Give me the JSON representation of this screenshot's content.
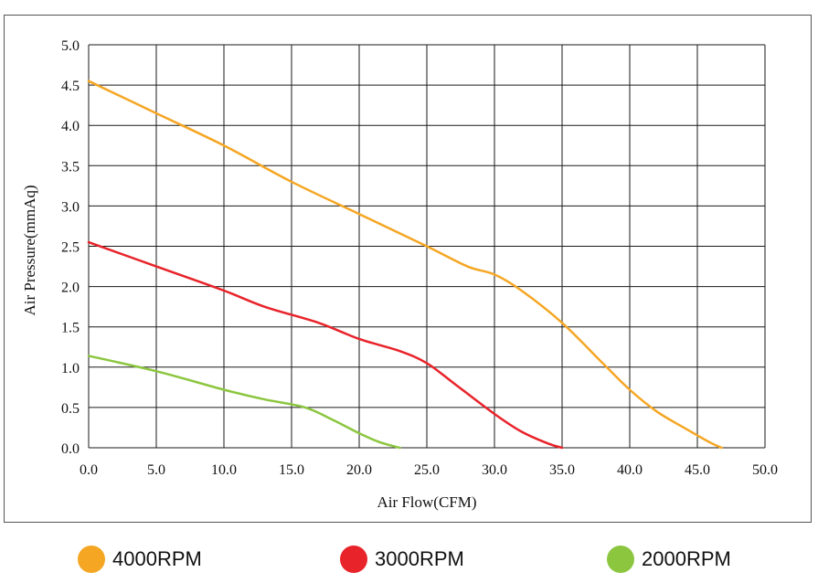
{
  "chart_data": {
    "type": "line",
    "title": "",
    "xlabel": "Air Flow(CFM)",
    "ylabel": "Air Pressure(mmAq)",
    "xlim": [
      0,
      50
    ],
    "ylim": [
      0,
      5
    ],
    "x_ticks": [
      "0.0",
      "5.0",
      "10.0",
      "15.0",
      "20.0",
      "25.0",
      "30.0",
      "35.0",
      "40.0",
      "45.0",
      "50.0"
    ],
    "y_ticks": [
      "0.0",
      "0.5",
      "1.0",
      "1.5",
      "2.0",
      "2.5",
      "3.0",
      "3.5",
      "4.0",
      "4.5",
      "5.0"
    ],
    "grid": true,
    "legend_position": "bottom",
    "series": [
      {
        "name": "4000RPM",
        "color": "#f5a623",
        "points": [
          [
            0,
            4.55
          ],
          [
            5,
            4.15
          ],
          [
            10,
            3.75
          ],
          [
            15,
            3.3
          ],
          [
            20,
            2.9
          ],
          [
            25,
            2.5
          ],
          [
            28,
            2.25
          ],
          [
            30,
            2.15
          ],
          [
            32,
            1.95
          ],
          [
            35,
            1.55
          ],
          [
            38,
            1.05
          ],
          [
            40,
            0.72
          ],
          [
            42,
            0.45
          ],
          [
            44,
            0.25
          ],
          [
            46,
            0.06
          ],
          [
            46.8,
            0.0
          ]
        ]
      },
      {
        "name": "3000RPM",
        "color": "#e8232a",
        "points": [
          [
            0,
            2.55
          ],
          [
            5,
            2.25
          ],
          [
            10,
            1.95
          ],
          [
            13,
            1.75
          ],
          [
            17,
            1.55
          ],
          [
            20,
            1.35
          ],
          [
            23,
            1.2
          ],
          [
            25,
            1.05
          ],
          [
            27,
            0.8
          ],
          [
            30,
            0.42
          ],
          [
            32,
            0.2
          ],
          [
            34,
            0.05
          ],
          [
            35,
            0.0
          ]
        ]
      },
      {
        "name": "2000RPM",
        "color": "#8cc63f",
        "points": [
          [
            0,
            1.14
          ],
          [
            5,
            0.95
          ],
          [
            10,
            0.72
          ],
          [
            13,
            0.6
          ],
          [
            16,
            0.5
          ],
          [
            18,
            0.35
          ],
          [
            20,
            0.18
          ],
          [
            21.5,
            0.07
          ],
          [
            23,
            0.0
          ]
        ]
      }
    ]
  }
}
